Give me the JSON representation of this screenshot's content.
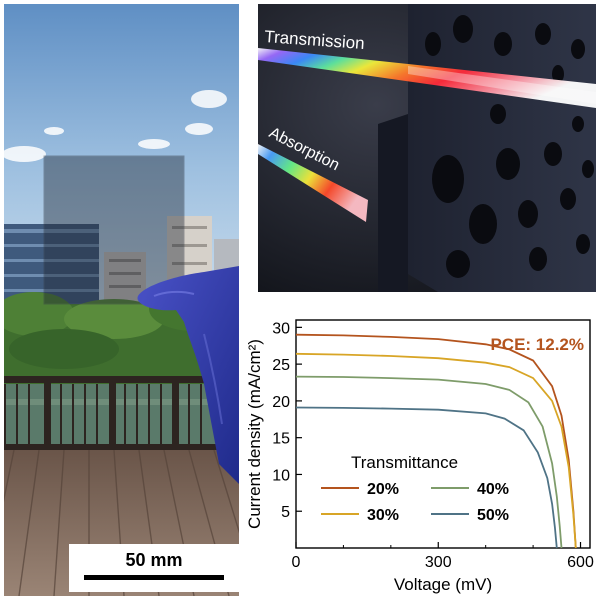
{
  "figure": {
    "scale_bar": {
      "label": "50 mm"
    },
    "render_panel": {
      "transmission_label": "Transmission",
      "absorption_label": "Absorption"
    }
  },
  "chart_data": {
    "type": "line",
    "xlabel": "Voltage (mV)",
    "ylabel": "Current density (mA/cm²)",
    "xlim": [
      0,
      620
    ],
    "ylim": [
      0,
      31
    ],
    "x_ticks": [
      0,
      300,
      600
    ],
    "y_ticks": [
      5,
      10,
      15,
      20,
      25,
      30
    ],
    "grid": false,
    "annotation": "PCE: 12.2%",
    "legend": {
      "title": "Transmittance",
      "placement": "bottom-left-center"
    },
    "series": [
      {
        "name": "20%",
        "color": "#b4541e",
        "jsc": 29.0,
        "voc": 590,
        "x": [
          0,
          100,
          200,
          300,
          400,
          450,
          500,
          540,
          560,
          575,
          585,
          590
        ],
        "y": [
          29.0,
          28.9,
          28.7,
          28.4,
          27.7,
          27.0,
          25.5,
          22.0,
          18.0,
          12.0,
          5.0,
          0
        ]
      },
      {
        "name": "30%",
        "color": "#d8a526",
        "jsc": 26.4,
        "voc": 590,
        "x": [
          0,
          100,
          200,
          300,
          400,
          450,
          500,
          540,
          560,
          575,
          585,
          590
        ],
        "y": [
          26.4,
          26.3,
          26.1,
          25.8,
          25.2,
          24.6,
          23.1,
          20.0,
          16.5,
          11.0,
          4.5,
          0
        ]
      },
      {
        "name": "40%",
        "color": "#7e9c6a",
        "jsc": 23.3,
        "voc": 560,
        "x": [
          0,
          100,
          200,
          300,
          400,
          450,
          490,
          520,
          540,
          550,
          556,
          560
        ],
        "y": [
          23.3,
          23.25,
          23.1,
          22.9,
          22.3,
          21.5,
          19.8,
          16.5,
          11.5,
          7.0,
          3.0,
          0
        ]
      },
      {
        "name": "50%",
        "color": "#4f7386",
        "jsc": 19.1,
        "voc": 550,
        "x": [
          0,
          100,
          200,
          300,
          400,
          440,
          480,
          510,
          530,
          540,
          546,
          550
        ],
        "y": [
          19.1,
          19.05,
          18.95,
          18.8,
          18.3,
          17.6,
          16.0,
          13.0,
          9.5,
          6.0,
          2.8,
          0
        ]
      }
    ]
  }
}
